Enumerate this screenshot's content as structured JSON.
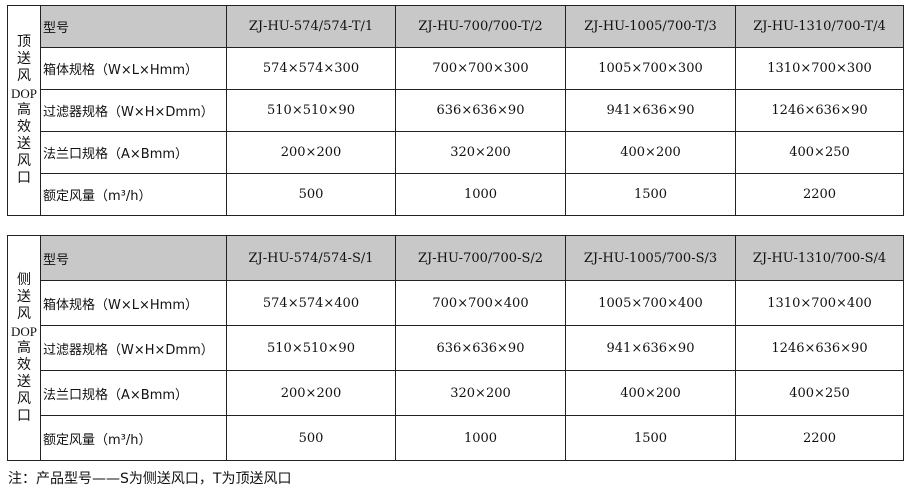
{
  "tables": [
    {
      "side_label": [
        "顶",
        "送",
        "风",
        "DOP",
        "高",
        "效",
        "送",
        "风",
        "口"
      ],
      "header_label": "型号",
      "models": [
        "ZJ-HU-574/574-T/1",
        "ZJ-HU-700/700-T/2",
        "ZJ-HU-1005/700-T/3",
        "ZJ-HU-1310/700-T/4"
      ],
      "rows": [
        {
          "label": "箱体规格（W×L×Hmm）",
          "values": [
            "574×574×300",
            "700×700×300",
            "1005×700×300",
            "1310×700×300"
          ]
        },
        {
          "label": "过滤器规格（W×H×Dmm）",
          "values": [
            "510×510×90",
            "636×636×90",
            "941×636×90",
            "1246×636×90"
          ]
        },
        {
          "label": "法兰口规格（A×Bmm）",
          "values": [
            "200×200",
            "320×200",
            "400×200",
            "400×250"
          ]
        },
        {
          "label": "额定风量（m³/h）",
          "values": [
            "500",
            "1000",
            "1500",
            "2200"
          ]
        }
      ]
    },
    {
      "side_label": [
        "侧",
        "送",
        "风",
        "DOP",
        "高",
        "效",
        "送",
        "风",
        "口"
      ],
      "header_label": "型号",
      "models": [
        "ZJ-HU-574/574-S/1",
        "ZJ-HU-700/700-S/2",
        "ZJ-HU-1005/700-S/3",
        "ZJ-HU-1310/700-S/4"
      ],
      "rows": [
        {
          "label": "箱体规格（W×L×Hmm）",
          "values": [
            "574×574×400",
            "700×700×400",
            "1005×700×400",
            "1310×700×400"
          ]
        },
        {
          "label": "过滤器规格（W×H×Dmm）",
          "values": [
            "510×510×90",
            "636×636×90",
            "941×636×90",
            "1246×636×90"
          ]
        },
        {
          "label": "法兰口规格（A×Bmm）",
          "values": [
            "200×200",
            "320×200",
            "400×200",
            "400×250"
          ]
        },
        {
          "label": "额定风量（m³/h）",
          "values": [
            "500",
            "1000",
            "1500",
            "2200"
          ]
        }
      ]
    }
  ],
  "note": "注：产品型号——S为侧送风口，T为顶送风口"
}
